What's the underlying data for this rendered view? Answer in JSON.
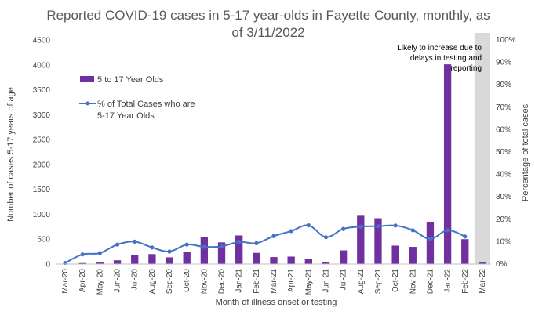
{
  "chart_data": {
    "type": "bar",
    "title": "Reported COVID-19 cases in 5-17 year-olds in Fayette County, monthly, as of 3/11/2022",
    "title_lines": [
      "Reported COVID-19 cases in 5-17 year-olds in Fayette County, monthly, as",
      "of 3/11/2022"
    ],
    "xlabel": "Month of illness onset or testing",
    "ylabel": "Number of cases 5-17 years of age",
    "y2label": "Percentage of total cases",
    "categories": [
      "Mar-20",
      "Apr-20",
      "May-20",
      "Jun-20",
      "Jul-20",
      "Aug-20",
      "Sep-20",
      "Oct-20",
      "Nov-20",
      "Dec-20",
      "Jan-21",
      "Feb-21",
      "Mar-21",
      "Apr-21",
      "May-21",
      "Jun-21",
      "Jul-21",
      "Aug-21",
      "Sep-21",
      "Oct-21",
      "Nov-21",
      "Dec-21",
      "Jan-22",
      "Feb-22",
      "Mar-22"
    ],
    "ylim": [
      0,
      4500
    ],
    "y_ticks": [
      "0",
      "500",
      "1000",
      "1500",
      "2000",
      "2500",
      "3000",
      "3500",
      "4000",
      "4500"
    ],
    "y2lim": [
      0,
      100
    ],
    "y2_ticks": [
      "0%",
      "10%",
      "20%",
      "30%",
      "40%",
      "50%",
      "60%",
      "70%",
      "80%",
      "90%",
      "100%"
    ],
    "series": [
      {
        "name": "5 to 17 Year Olds",
        "type": "bar",
        "axis": "left",
        "color": "#7030A0",
        "values": [
          5,
          20,
          30,
          75,
          185,
          200,
          135,
          245,
          545,
          435,
          575,
          225,
          140,
          150,
          110,
          35,
          275,
          970,
          920,
          370,
          345,
          850,
          4010,
          500,
          30
        ]
      },
      {
        "name": "% of Total Cases who are 5-17 Year Olds",
        "legend_lines": [
          "% of Total Cases who are",
          "5-17 Year Olds"
        ],
        "type": "line",
        "axis": "right",
        "color": "#4472C4",
        "values": [
          0.5,
          4.3,
          4.9,
          8.7,
          10,
          7.4,
          5.6,
          8.7,
          7.7,
          7.9,
          9.9,
          9.3,
          12.5,
          14.7,
          17.3,
          12,
          15.7,
          16.7,
          16.9,
          17.2,
          15.1,
          11.2,
          15.1,
          12.3,
          null
        ]
      }
    ],
    "shaded_category": "Mar-22",
    "shade_color": "#D9D9D9",
    "annotation_lines": [
      "Likely to increase due to",
      "delays in testing and",
      "reporting"
    ],
    "legend_position": "top-left",
    "grid": false
  }
}
